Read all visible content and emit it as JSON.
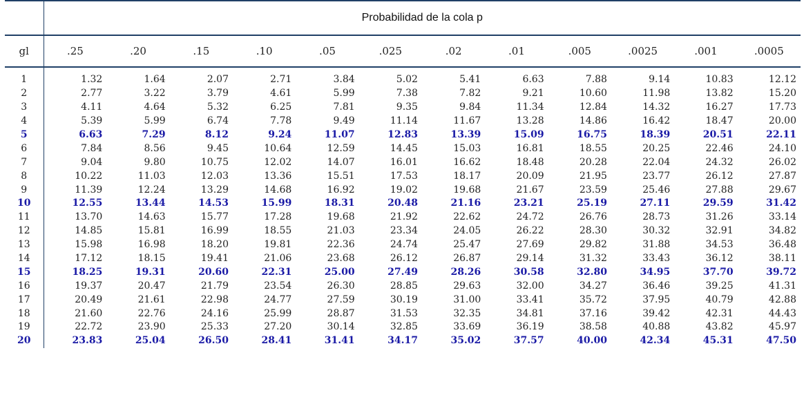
{
  "caption": "Probabilidad de la cola p",
  "row_header": "gl",
  "columns": [
    ".25",
    ".20",
    ".15",
    ".10",
    ".05",
    ".025",
    ".02",
    ".01",
    ".005",
    ".0025",
    ".001",
    ".0005"
  ],
  "highlight_color": "#1a1aa6",
  "highlighted_rows": [
    "5",
    "10",
    "15",
    "20"
  ],
  "rows": [
    {
      "gl": "1",
      "values": [
        "1.32",
        "1.64",
        "2.07",
        "2.71",
        "3.84",
        "5.02",
        "5.41",
        "6.63",
        "7.88",
        "9.14",
        "10.83",
        "12.12"
      ]
    },
    {
      "gl": "2",
      "values": [
        "2.77",
        "3.22",
        "3.79",
        "4.61",
        "5.99",
        "7.38",
        "7.82",
        "9.21",
        "10.60",
        "11.98",
        "13.82",
        "15.20"
      ]
    },
    {
      "gl": "3",
      "values": [
        "4.11",
        "4.64",
        "5.32",
        "6.25",
        "7.81",
        "9.35",
        "9.84",
        "11.34",
        "12.84",
        "14.32",
        "16.27",
        "17.73"
      ]
    },
    {
      "gl": "4",
      "values": [
        "5.39",
        "5.99",
        "6.74",
        "7.78",
        "9.49",
        "11.14",
        "11.67",
        "13.28",
        "14.86",
        "16.42",
        "18.47",
        "20.00"
      ]
    },
    {
      "gl": "5",
      "values": [
        "6.63",
        "7.29",
        "8.12",
        "9.24",
        "11.07",
        "12.83",
        "13.39",
        "15.09",
        "16.75",
        "18.39",
        "20.51",
        "22.11"
      ]
    },
    {
      "gl": "6",
      "values": [
        "7.84",
        "8.56",
        "9.45",
        "10.64",
        "12.59",
        "14.45",
        "15.03",
        "16.81",
        "18.55",
        "20.25",
        "22.46",
        "24.10"
      ]
    },
    {
      "gl": "7",
      "values": [
        "9.04",
        "9.80",
        "10.75",
        "12.02",
        "14.07",
        "16.01",
        "16.62",
        "18.48",
        "20.28",
        "22.04",
        "24.32",
        "26.02"
      ]
    },
    {
      "gl": "8",
      "values": [
        "10.22",
        "11.03",
        "12.03",
        "13.36",
        "15.51",
        "17.53",
        "18.17",
        "20.09",
        "21.95",
        "23.77",
        "26.12",
        "27.87"
      ]
    },
    {
      "gl": "9",
      "values": [
        "11.39",
        "12.24",
        "13.29",
        "14.68",
        "16.92",
        "19.02",
        "19.68",
        "21.67",
        "23.59",
        "25.46",
        "27.88",
        "29.67"
      ]
    },
    {
      "gl": "10",
      "values": [
        "12.55",
        "13.44",
        "14.53",
        "15.99",
        "18.31",
        "20.48",
        "21.16",
        "23.21",
        "25.19",
        "27.11",
        "29.59",
        "31.42"
      ]
    },
    {
      "gl": "11",
      "values": [
        "13.70",
        "14.63",
        "15.77",
        "17.28",
        "19.68",
        "21.92",
        "22.62",
        "24.72",
        "26.76",
        "28.73",
        "31.26",
        "33.14"
      ]
    },
    {
      "gl": "12",
      "values": [
        "14.85",
        "15.81",
        "16.99",
        "18.55",
        "21.03",
        "23.34",
        "24.05",
        "26.22",
        "28.30",
        "30.32",
        "32.91",
        "34.82"
      ]
    },
    {
      "gl": "13",
      "values": [
        "15.98",
        "16.98",
        "18.20",
        "19.81",
        "22.36",
        "24.74",
        "25.47",
        "27.69",
        "29.82",
        "31.88",
        "34.53",
        "36.48"
      ]
    },
    {
      "gl": "14",
      "values": [
        "17.12",
        "18.15",
        "19.41",
        "21.06",
        "23.68",
        "26.12",
        "26.87",
        "29.14",
        "31.32",
        "33.43",
        "36.12",
        "38.11"
      ]
    },
    {
      "gl": "15",
      "values": [
        "18.25",
        "19.31",
        "20.60",
        "22.31",
        "25.00",
        "27.49",
        "28.26",
        "30.58",
        "32.80",
        "34.95",
        "37.70",
        "39.72"
      ]
    },
    {
      "gl": "16",
      "values": [
        "19.37",
        "20.47",
        "21.79",
        "23.54",
        "26.30",
        "28.85",
        "29.63",
        "32.00",
        "34.27",
        "36.46",
        "39.25",
        "41.31"
      ]
    },
    {
      "gl": "17",
      "values": [
        "20.49",
        "21.61",
        "22.98",
        "24.77",
        "27.59",
        "30.19",
        "31.00",
        "33.41",
        "35.72",
        "37.95",
        "40.79",
        "42.88"
      ]
    },
    {
      "gl": "18",
      "values": [
        "21.60",
        "22.76",
        "24.16",
        "25.99",
        "28.87",
        "31.53",
        "32.35",
        "34.81",
        "37.16",
        "39.42",
        "42.31",
        "44.43"
      ]
    },
    {
      "gl": "19",
      "values": [
        "22.72",
        "23.90",
        "25.33",
        "27.20",
        "30.14",
        "32.85",
        "33.69",
        "36.19",
        "38.58",
        "40.88",
        "43.82",
        "45.97"
      ]
    },
    {
      "gl": "20",
      "values": [
        "23.83",
        "25.04",
        "26.50",
        "28.41",
        "31.41",
        "34.17",
        "35.02",
        "37.57",
        "40.00",
        "42.34",
        "45.31",
        "47.50"
      ]
    }
  ]
}
